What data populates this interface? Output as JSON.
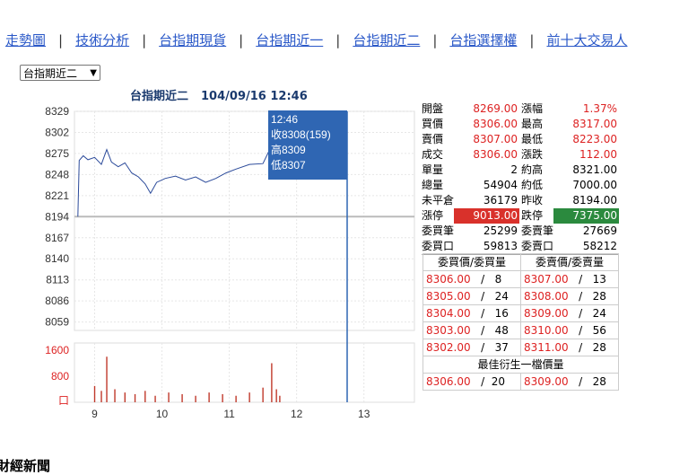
{
  "nav": {
    "items": [
      "走勢圖",
      "技術分析",
      "台指期現貨",
      "台指期近一",
      "台指期近二",
      "台指選擇權",
      "前十大交易人"
    ],
    "separator": "|"
  },
  "selector": {
    "value": "台指期近二",
    "arrow": "▼"
  },
  "chart_title": {
    "name": "台指期近二",
    "datetime": "104/09/16 12:46"
  },
  "chart_data": {
    "type": "line",
    "price_axis": {
      "ticks": [
        8329,
        8302,
        8275,
        8248,
        8221,
        8194,
        8167,
        8140,
        8113,
        8086,
        8059
      ],
      "reference": 8194
    },
    "volume_axis": {
      "ticks": [
        "1600",
        "800",
        "口"
      ]
    },
    "x_ticks": [
      "9",
      "10",
      "11",
      "12",
      "13"
    ],
    "tooltip": {
      "time": "12:46",
      "close": "收8308(159)",
      "high": "高8309",
      "low": "低8307"
    },
    "price_series": [
      [
        8.75,
        8194
      ],
      [
        8.77,
        8266
      ],
      [
        8.83,
        8272
      ],
      [
        8.9,
        8267
      ],
      [
        9.0,
        8270
      ],
      [
        9.1,
        8261
      ],
      [
        9.18,
        8280
      ],
      [
        9.25,
        8264
      ],
      [
        9.35,
        8258
      ],
      [
        9.45,
        8263
      ],
      [
        9.55,
        8250
      ],
      [
        9.65,
        8245
      ],
      [
        9.75,
        8236
      ],
      [
        9.83,
        8224
      ],
      [
        9.92,
        8238
      ],
      [
        10.05,
        8243
      ],
      [
        10.2,
        8246
      ],
      [
        10.35,
        8241
      ],
      [
        10.5,
        8245
      ],
      [
        10.65,
        8238
      ],
      [
        10.8,
        8243
      ],
      [
        10.95,
        8250
      ],
      [
        11.1,
        8255
      ],
      [
        11.3,
        8261
      ],
      [
        11.5,
        8262
      ],
      [
        11.6,
        8280
      ],
      [
        11.7,
        8290
      ],
      [
        11.73,
        8308
      ]
    ],
    "volume_series": [
      [
        9.0,
        500
      ],
      [
        9.1,
        350
      ],
      [
        9.18,
        1400
      ],
      [
        9.3,
        400
      ],
      [
        9.45,
        300
      ],
      [
        9.6,
        250
      ],
      [
        9.75,
        350
      ],
      [
        9.9,
        200
      ],
      [
        10.1,
        300
      ],
      [
        10.3,
        250
      ],
      [
        10.5,
        200
      ],
      [
        10.7,
        300
      ],
      [
        10.9,
        250
      ],
      [
        11.1,
        200
      ],
      [
        11.3,
        300
      ],
      [
        11.5,
        450
      ],
      [
        11.63,
        1200
      ],
      [
        11.7,
        400
      ],
      [
        11.75,
        200
      ]
    ]
  },
  "quote": {
    "rows": [
      {
        "l1": "開盤",
        "v1": "8269.00",
        "l2": "漲幅",
        "v2": "1.37%"
      },
      {
        "l1": "買價",
        "v1": "8306.00",
        "l2": "最高",
        "v2": "8317.00"
      },
      {
        "l1": "賣價",
        "v1": "8307.00",
        "l2": "最低",
        "v2": "8223.00"
      },
      {
        "l1": "成交",
        "v1": "8306.00",
        "l2": "漲跌",
        "v2": "112.00"
      },
      {
        "l1": "單量",
        "v1": "2",
        "l2": "約高",
        "v2": "8321.00"
      },
      {
        "l1": "總量",
        "v1": "54904",
        "l2": "約低",
        "v2": "7000.00"
      },
      {
        "l1": "未平倉",
        "v1": "36179",
        "l2": "昨收",
        "v2": "8194.00"
      },
      {
        "l1": "漲停",
        "v1": "9013.00",
        "l2": "跌停",
        "v2": "7375.00"
      },
      {
        "l1": "委買筆",
        "v1": "25299",
        "l2": "委賣筆",
        "v2": "27669"
      },
      {
        "l1": "委買口",
        "v1": "59813",
        "l2": "委賣口",
        "v2": "58212"
      }
    ]
  },
  "book": {
    "bid_header": "委買價/委買量",
    "ask_header": "委賣價/委賣量",
    "bids": [
      {
        "price": "8306.00",
        "qty": "8"
      },
      {
        "price": "8305.00",
        "qty": "24"
      },
      {
        "price": "8304.00",
        "qty": "16"
      },
      {
        "price": "8303.00",
        "qty": "48"
      },
      {
        "price": "8302.00",
        "qty": "37"
      }
    ],
    "asks": [
      {
        "price": "8307.00",
        "qty": "13"
      },
      {
        "price": "8308.00",
        "qty": "28"
      },
      {
        "price": "8309.00",
        "qty": "24"
      },
      {
        "price": "8310.00",
        "qty": "56"
      },
      {
        "price": "8311.00",
        "qty": "28"
      }
    ],
    "best_header": "最佳衍生一檔價量",
    "best_bid": {
      "price": "8306.00",
      "qty": "20"
    },
    "best_ask": {
      "price": "8309.00",
      "qty": "28"
    },
    "slash": "/"
  },
  "news": {
    "label": "財經新聞"
  },
  "colors": {
    "nav_link": "#2a58c8",
    "price_line": "#2b4a9a",
    "volume": "#c0392b",
    "tooltip_bg": "#2f66b3",
    "up": "#d22",
    "limit_up": "#d9312b",
    "limit_down": "#2b8a3e"
  }
}
